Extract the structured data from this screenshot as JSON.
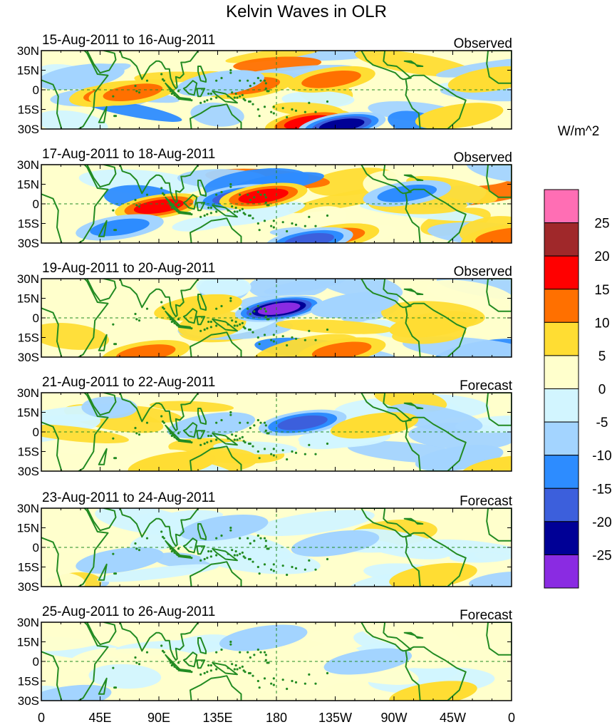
{
  "title": "Kelvin Waves in OLR",
  "panels": [
    {
      "date_range": "15-Aug-2011 to 16-Aug-2011",
      "kind": "Observed",
      "intensity": 1.0
    },
    {
      "date_range": "17-Aug-2011 to 18-Aug-2011",
      "kind": "Observed",
      "intensity": 1.0
    },
    {
      "date_range": "19-Aug-2011 to 20-Aug-2011",
      "kind": "Observed",
      "intensity": 0.9
    },
    {
      "date_range": "21-Aug-2011 to 22-Aug-2011",
      "kind": "Forecast",
      "intensity": 0.7
    },
    {
      "date_range": "23-Aug-2011 to 24-Aug-2011",
      "kind": "Forecast",
      "intensity": 0.45
    },
    {
      "date_range": "25-Aug-2011 to 26-Aug-2011",
      "kind": "Forecast",
      "intensity": 0.3
    }
  ],
  "lat_labels": [
    "30N",
    "15N",
    "0",
    "15S",
    "30S"
  ],
  "lon_labels": [
    "0",
    "45E",
    "90E",
    "135E",
    "180",
    "135W",
    "90W",
    "45W",
    "0"
  ],
  "colorbar": {
    "unit_label": "W/m^2",
    "tick_labels": [
      "25",
      "20",
      "15",
      "10",
      "5",
      "0",
      "-5",
      "-10",
      "-15",
      "-20",
      "-25"
    ],
    "colors": [
      "#ff6eb4",
      "#a0282a",
      "#ff0000",
      "#ff7000",
      "#ffdd33",
      "#ffffcc",
      "#d2f5ff",
      "#a3d4ff",
      "#2d8cff",
      "#3c5fdc",
      "#000096",
      "#8a2be2"
    ]
  },
  "chart_data": {
    "type": "heatmap",
    "variable": "OLR anomaly (Kelvin wave filtered)",
    "unit": "W/m^2",
    "levels": [
      -25,
      -20,
      -15,
      -10,
      -5,
      0,
      5,
      10,
      15,
      20,
      25
    ],
    "x_range": [
      0,
      360
    ],
    "y_range": [
      -30,
      30
    ],
    "features": [
      [
        {
          "lon": 55,
          "lat": -3,
          "value": 14
        },
        {
          "lon": 70,
          "lat": -2,
          "value": 10
        },
        {
          "lon": 160,
          "lat": 3,
          "value": 13
        },
        {
          "lon": 137,
          "lat": 5,
          "value": -8
        },
        {
          "lon": 205,
          "lat": -25,
          "value": 16
        },
        {
          "lon": 230,
          "lat": -27,
          "value": -22
        },
        {
          "lon": 222,
          "lat": 8,
          "value": 12
        },
        {
          "lon": 345,
          "lat": 8,
          "value": 8
        },
        {
          "lon": 30,
          "lat": 10,
          "value": -6
        },
        {
          "lon": 320,
          "lat": -20,
          "value": 8
        }
      ],
      [
        {
          "lon": 90,
          "lat": -2,
          "value": 16
        },
        {
          "lon": 150,
          "lat": 5,
          "value": -18
        },
        {
          "lon": 170,
          "lat": 6,
          "value": 16
        },
        {
          "lon": 225,
          "lat": -25,
          "value": 14
        },
        {
          "lon": 205,
          "lat": -28,
          "value": -17
        },
        {
          "lon": 280,
          "lat": 8,
          "value": -10
        },
        {
          "lon": 60,
          "lat": -18,
          "value": -10
        },
        {
          "lon": 355,
          "lat": -25,
          "value": 12
        }
      ],
      [
        {
          "lon": 182,
          "lat": 7,
          "value": -27
        },
        {
          "lon": 120,
          "lat": 8,
          "value": 8
        },
        {
          "lon": 230,
          "lat": -25,
          "value": 12
        },
        {
          "lon": 80,
          "lat": -27,
          "value": 10
        },
        {
          "lon": 240,
          "lat": 10,
          "value": -8
        },
        {
          "lon": 300,
          "lat": -5,
          "value": 8
        }
      ],
      [
        {
          "lon": 200,
          "lat": 7,
          "value": -16
        },
        {
          "lon": 130,
          "lat": 5,
          "value": -8
        },
        {
          "lon": 100,
          "lat": -25,
          "value": 8
        },
        {
          "lon": 320,
          "lat": -20,
          "value": -8
        },
        {
          "lon": 255,
          "lat": 5,
          "value": 6
        },
        {
          "lon": 355,
          "lat": -28,
          "value": 8
        }
      ],
      [
        {
          "lon": 225,
          "lat": 3,
          "value": -7
        },
        {
          "lon": 140,
          "lat": 15,
          "value": -6
        },
        {
          "lon": 300,
          "lat": -22,
          "value": 6
        },
        {
          "lon": 60,
          "lat": -10,
          "value": -5
        }
      ],
      [
        {
          "lon": 250,
          "lat": 0,
          "value": -6
        },
        {
          "lon": 300,
          "lat": -25,
          "value": 8
        },
        {
          "lon": 170,
          "lat": 18,
          "value": -5
        },
        {
          "lon": 20,
          "lat": -28,
          "value": -6
        }
      ]
    ]
  }
}
